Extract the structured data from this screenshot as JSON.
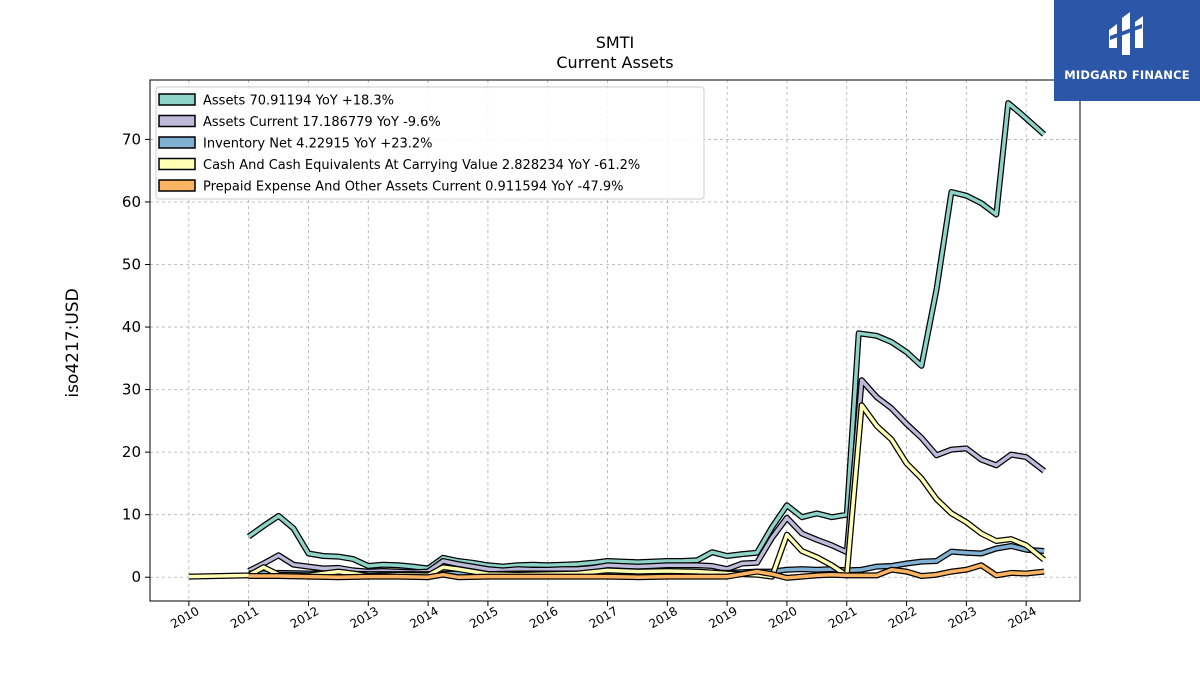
{
  "chart_data": {
    "type": "line",
    "title": "SMTI",
    "subtitle": "Current  Assets",
    "ylabel": "iso4217:USD",
    "xlabel": "",
    "xlim": [
      2009.35,
      2024.9
    ],
    "ylim": [
      -3.8,
      79.5
    ],
    "yticks": [
      0,
      10,
      20,
      30,
      40,
      50,
      60,
      70
    ],
    "xticks": [
      "2010",
      "2011",
      "2012",
      "2013",
      "2014",
      "2015",
      "2016",
      "2017",
      "2018",
      "2019",
      "2020",
      "2021",
      "2022",
      "2023",
      "2024"
    ],
    "grid": true,
    "legend_position": "top-left",
    "series": [
      {
        "name": "Assets  70.91194 YoY +18.3%",
        "color": "#8dd3c7",
        "points": [
          [
            2011.0,
            6.5
          ],
          [
            2011.25,
            8.2
          ],
          [
            2011.5,
            9.8
          ],
          [
            2011.75,
            7.8
          ],
          [
            2012.0,
            3.8
          ],
          [
            2012.25,
            3.4
          ],
          [
            2012.5,
            3.3
          ],
          [
            2012.75,
            2.9
          ],
          [
            2013.0,
            1.8
          ],
          [
            2013.25,
            2.0
          ],
          [
            2013.5,
            1.9
          ],
          [
            2013.75,
            1.7
          ],
          [
            2014.0,
            1.4
          ],
          [
            2014.25,
            3.1
          ],
          [
            2014.5,
            2.6
          ],
          [
            2014.75,
            2.3
          ],
          [
            2015.0,
            1.9
          ],
          [
            2015.25,
            1.7
          ],
          [
            2015.5,
            1.9
          ],
          [
            2015.75,
            2.0
          ],
          [
            2016.0,
            1.9
          ],
          [
            2016.25,
            2.0
          ],
          [
            2016.5,
            2.1
          ],
          [
            2016.75,
            2.3
          ],
          [
            2017.0,
            2.6
          ],
          [
            2017.25,
            2.5
          ],
          [
            2017.5,
            2.4
          ],
          [
            2017.75,
            2.5
          ],
          [
            2018.0,
            2.6
          ],
          [
            2018.25,
            2.6
          ],
          [
            2018.5,
            2.7
          ],
          [
            2018.75,
            4.0
          ],
          [
            2019.0,
            3.4
          ],
          [
            2019.25,
            3.7
          ],
          [
            2019.5,
            3.9
          ],
          [
            2019.75,
            8.0
          ],
          [
            2020.0,
            11.5
          ],
          [
            2020.25,
            9.6
          ],
          [
            2020.5,
            10.2
          ],
          [
            2020.75,
            9.6
          ],
          [
            2021.0,
            10.0
          ],
          [
            2021.2,
            39.0
          ],
          [
            2021.5,
            38.6
          ],
          [
            2021.75,
            37.6
          ],
          [
            2022.0,
            36.0
          ],
          [
            2022.25,
            33.8
          ],
          [
            2022.5,
            46.0
          ],
          [
            2022.75,
            61.6
          ],
          [
            2023.0,
            61.0
          ],
          [
            2023.25,
            59.8
          ],
          [
            2023.5,
            58.0
          ],
          [
            2023.7,
            75.8
          ],
          [
            2023.9,
            74.2
          ],
          [
            2024.3,
            70.8
          ]
        ]
      },
      {
        "name": "Assets Current  17.186779 YoY -9.6%",
        "color": "#bebada",
        "points": [
          [
            2011.0,
            1.0
          ],
          [
            2011.25,
            2.2
          ],
          [
            2011.5,
            3.5
          ],
          [
            2011.75,
            2.0
          ],
          [
            2012.0,
            1.7
          ],
          [
            2012.25,
            1.4
          ],
          [
            2012.5,
            1.5
          ],
          [
            2012.75,
            1.1
          ],
          [
            2013.0,
            0.9
          ],
          [
            2013.25,
            1.0
          ],
          [
            2013.5,
            0.9
          ],
          [
            2013.75,
            0.8
          ],
          [
            2014.0,
            0.9
          ],
          [
            2014.25,
            2.6
          ],
          [
            2014.5,
            2.1
          ],
          [
            2014.75,
            1.7
          ],
          [
            2015.0,
            1.3
          ],
          [
            2015.25,
            1.1
          ],
          [
            2015.5,
            1.3
          ],
          [
            2015.75,
            1.2
          ],
          [
            2016.0,
            1.2
          ],
          [
            2016.25,
            1.3
          ],
          [
            2016.5,
            1.3
          ],
          [
            2016.75,
            1.5
          ],
          [
            2017.0,
            1.9
          ],
          [
            2017.25,
            1.8
          ],
          [
            2017.5,
            1.7
          ],
          [
            2017.75,
            1.8
          ],
          [
            2018.0,
            1.9
          ],
          [
            2018.25,
            1.9
          ],
          [
            2018.5,
            1.9
          ],
          [
            2018.75,
            1.8
          ],
          [
            2019.0,
            1.3
          ],
          [
            2019.25,
            2.2
          ],
          [
            2019.5,
            2.3
          ],
          [
            2019.75,
            6.3
          ],
          [
            2020.0,
            9.5
          ],
          [
            2020.25,
            7.0
          ],
          [
            2020.5,
            6.0
          ],
          [
            2020.75,
            5.1
          ],
          [
            2021.0,
            4.0
          ],
          [
            2021.25,
            31.5
          ],
          [
            2021.5,
            28.8
          ],
          [
            2021.75,
            27.0
          ],
          [
            2022.0,
            24.5
          ],
          [
            2022.25,
            22.3
          ],
          [
            2022.5,
            19.5
          ],
          [
            2022.75,
            20.4
          ],
          [
            2023.0,
            20.6
          ],
          [
            2023.25,
            18.8
          ],
          [
            2023.5,
            17.9
          ],
          [
            2023.75,
            19.6
          ],
          [
            2024.0,
            19.2
          ],
          [
            2024.3,
            17.0
          ]
        ]
      },
      {
        "name": "Inventory Net  4.22915 YoY +23.2%",
        "color": "#80b1d3",
        "points": [
          [
            2011.0,
            0.6
          ],
          [
            2011.5,
            0.7
          ],
          [
            2012.0,
            0.6
          ],
          [
            2012.5,
            0.6
          ],
          [
            2013.0,
            0.5
          ],
          [
            2013.5,
            0.5
          ],
          [
            2014.0,
            0.5
          ],
          [
            2014.5,
            0.6
          ],
          [
            2015.0,
            0.5
          ],
          [
            2015.5,
            0.6
          ],
          [
            2016.0,
            0.6
          ],
          [
            2016.5,
            0.6
          ],
          [
            2017.0,
            0.7
          ],
          [
            2017.5,
            0.8
          ],
          [
            2018.0,
            0.8
          ],
          [
            2018.5,
            0.8
          ],
          [
            2019.0,
            0.7
          ],
          [
            2019.5,
            0.9
          ],
          [
            2019.75,
            0.9
          ],
          [
            2020.0,
            1.2
          ],
          [
            2020.25,
            1.3
          ],
          [
            2020.5,
            1.2
          ],
          [
            2020.75,
            1.3
          ],
          [
            2021.0,
            1.1
          ],
          [
            2021.25,
            1.2
          ],
          [
            2021.5,
            1.7
          ],
          [
            2021.75,
            1.8
          ],
          [
            2022.0,
            2.2
          ],
          [
            2022.25,
            2.5
          ],
          [
            2022.5,
            2.6
          ],
          [
            2022.75,
            4.1
          ],
          [
            2023.0,
            3.9
          ],
          [
            2023.25,
            3.8
          ],
          [
            2023.5,
            4.6
          ],
          [
            2023.75,
            5.0
          ],
          [
            2024.0,
            4.4
          ],
          [
            2024.3,
            4.2
          ]
        ]
      },
      {
        "name": "Cash And Cash Equivalents At Carrying Value  2.828234 YoY -61.2%",
        "color": "#ffffb3",
        "points": [
          [
            2010.0,
            0.1
          ],
          [
            2011.0,
            0.3
          ],
          [
            2011.25,
            1.6
          ],
          [
            2011.5,
            0.4
          ],
          [
            2012.0,
            0.3
          ],
          [
            2012.5,
            0.9
          ],
          [
            2012.75,
            0.6
          ],
          [
            2013.0,
            0.2
          ],
          [
            2013.5,
            0.4
          ],
          [
            2014.0,
            0.3
          ],
          [
            2014.25,
            1.6
          ],
          [
            2014.5,
            1.3
          ],
          [
            2014.75,
            0.9
          ],
          [
            2015.0,
            0.5
          ],
          [
            2015.5,
            0.4
          ],
          [
            2016.0,
            0.5
          ],
          [
            2016.5,
            0.6
          ],
          [
            2017.0,
            1.1
          ],
          [
            2017.5,
            0.9
          ],
          [
            2018.0,
            1.0
          ],
          [
            2018.5,
            0.9
          ],
          [
            2019.0,
            0.6
          ],
          [
            2019.5,
            0.4
          ],
          [
            2019.75,
            0.1
          ],
          [
            2020.0,
            6.8
          ],
          [
            2020.25,
            4.2
          ],
          [
            2020.5,
            3.2
          ],
          [
            2020.75,
            1.9
          ],
          [
            2021.0,
            0.3
          ],
          [
            2021.25,
            27.5
          ],
          [
            2021.5,
            24.2
          ],
          [
            2021.75,
            22.0
          ],
          [
            2022.0,
            18.2
          ],
          [
            2022.25,
            15.8
          ],
          [
            2022.5,
            12.5
          ],
          [
            2022.75,
            10.2
          ],
          [
            2023.0,
            8.8
          ],
          [
            2023.25,
            7.0
          ],
          [
            2023.5,
            5.8
          ],
          [
            2023.75,
            6.1
          ],
          [
            2024.0,
            5.1
          ],
          [
            2024.3,
            2.8
          ]
        ]
      },
      {
        "name": "Prepaid Expense And Other Assets Current  0.911594 YoY -47.9%",
        "color": "#fdb462",
        "points": [
          [
            2011.0,
            0.2
          ],
          [
            2011.5,
            0.2
          ],
          [
            2012.0,
            0.1
          ],
          [
            2012.5,
            0.0
          ],
          [
            2013.0,
            0.1
          ],
          [
            2013.5,
            0.1
          ],
          [
            2014.0,
            0.0
          ],
          [
            2014.25,
            0.4
          ],
          [
            2014.5,
            0.0
          ],
          [
            2015.0,
            0.1
          ],
          [
            2015.5,
            0.1
          ],
          [
            2016.0,
            0.1
          ],
          [
            2016.5,
            0.1
          ],
          [
            2017.0,
            0.1
          ],
          [
            2017.5,
            0.0
          ],
          [
            2018.0,
            0.1
          ],
          [
            2018.5,
            0.1
          ],
          [
            2019.0,
            0.1
          ],
          [
            2019.5,
            0.9
          ],
          [
            2019.75,
            0.5
          ],
          [
            2020.0,
            -0.1
          ],
          [
            2020.25,
            0.1
          ],
          [
            2020.5,
            0.3
          ],
          [
            2020.75,
            0.4
          ],
          [
            2021.0,
            0.3
          ],
          [
            2021.5,
            0.3
          ],
          [
            2021.75,
            1.2
          ],
          [
            2022.0,
            0.9
          ],
          [
            2022.25,
            0.2
          ],
          [
            2022.5,
            0.4
          ],
          [
            2022.75,
            0.9
          ],
          [
            2023.0,
            1.2
          ],
          [
            2023.25,
            1.9
          ],
          [
            2023.5,
            0.3
          ],
          [
            2023.75,
            0.7
          ],
          [
            2024.0,
            0.6
          ],
          [
            2024.3,
            0.9
          ]
        ]
      }
    ]
  },
  "logo": {
    "text": "MIDGARD FINANCE"
  }
}
